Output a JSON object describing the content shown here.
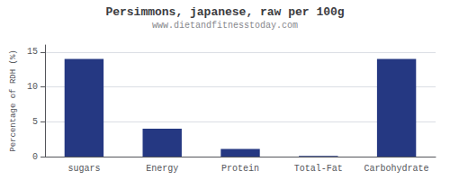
{
  "chart_data": {
    "type": "bar",
    "title": "Persimmons, japanese, raw per 100g",
    "subtitle": "www.dietandfitnesstoday.com",
    "categories": [
      "sugars",
      "Energy",
      "Protein",
      "Total-Fat",
      "Carbohydrate"
    ],
    "values": [
      14.0,
      4.0,
      1.1,
      0.1,
      14.0
    ],
    "color": "#253882",
    "ylabel": "Percentage of RDH (%)",
    "ylim": [
      0,
      16
    ],
    "yticks": [
      0,
      5,
      10,
      15
    ],
    "grid": true
  }
}
